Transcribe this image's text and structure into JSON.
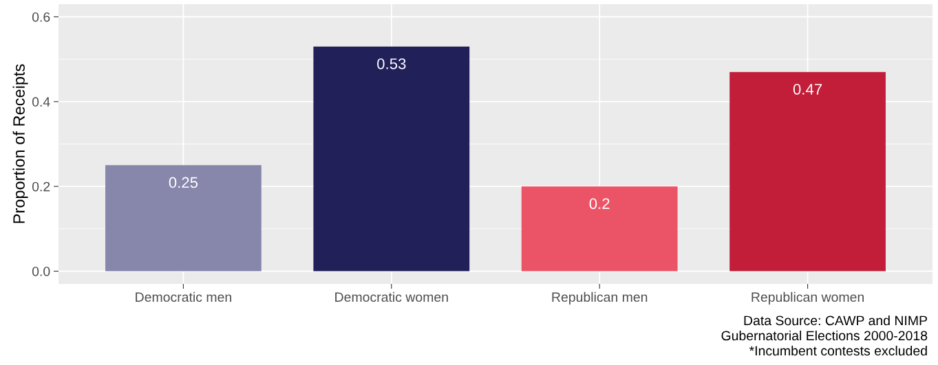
{
  "chart_data": {
    "type": "bar",
    "ylabel": "Proportion of Receipts",
    "categories": [
      "Democratic men",
      "Democratic women",
      "Republican men",
      "Republican women"
    ],
    "values": [
      0.25,
      0.53,
      0.2,
      0.47
    ],
    "colors": [
      "#8687ab",
      "#222059",
      "#eb5467",
      "#c21e3a"
    ],
    "ylim": [
      -0.03,
      0.63
    ],
    "yticks": [
      {
        "value": 0,
        "label": "0.0"
      },
      {
        "value": 0.2,
        "label": "0.2"
      },
      {
        "value": 0.4,
        "label": "0.4"
      },
      {
        "value": 0.6,
        "label": "0.6"
      }
    ],
    "grid": true,
    "data_labels": true,
    "annotations": [
      "Data Source: CAWP and NIMP",
      "Gubernatorial Elections 2000-2018",
      "*Incumbent contests excluded"
    ]
  }
}
